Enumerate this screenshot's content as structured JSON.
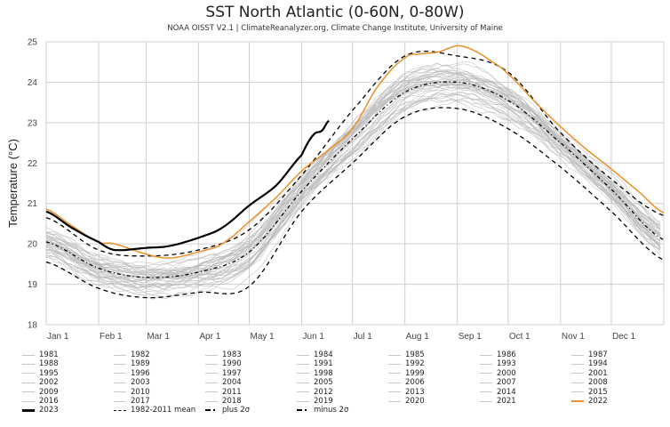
{
  "chart_data": {
    "type": "line",
    "title": "SST North Atlantic (0-60N, 0-80W)",
    "subtitle": "NOAA OISST V2.1 | ClimateReanalyzer.org, Climate Change Institute, University of Maine",
    "xlabel": "",
    "ylabel": "Temperature (°C)",
    "ylim": [
      18,
      25
    ],
    "yticks": [
      18,
      19,
      20,
      21,
      22,
      23,
      24,
      25
    ],
    "xlim_day_of_year": [
      0,
      365
    ],
    "xticks": [
      {
        "label": "Jan 1",
        "day": 0
      },
      {
        "label": "Feb 1",
        "day": 31
      },
      {
        "label": "Mar 1",
        "day": 59
      },
      {
        "label": "Apr 1",
        "day": 90
      },
      {
        "label": "May 1",
        "day": 120
      },
      {
        "label": "Jun 1",
        "day": 151
      },
      {
        "label": "Jul 1",
        "day": 181
      },
      {
        "label": "Aug 1",
        "day": 212
      },
      {
        "label": "Sep 1",
        "day": 243
      },
      {
        "label": "Oct 1",
        "day": 273
      },
      {
        "label": "Nov 1",
        "day": 304
      },
      {
        "label": "Dec 1",
        "day": 334
      }
    ],
    "grid": true,
    "legend_position": "bottom",
    "colors": {
      "year_gray": "#b8b8b8",
      "y2023": "#000000",
      "y2022": "#e8902a",
      "stats": "#000000",
      "grid": "#cfcfcf"
    },
    "series": [
      {
        "name": "1982-2011 mean",
        "style": "dashed",
        "x_day": [
          0,
          31,
          59,
          90,
          120,
          151,
          181,
          212,
          243,
          273,
          304,
          334,
          365
        ],
        "values": [
          20.05,
          19.4,
          19.17,
          19.3,
          19.8,
          21.3,
          22.6,
          23.75,
          24.0,
          23.55,
          22.5,
          21.35,
          20.1
        ]
      },
      {
        "name": "plus 2σ",
        "style": "dash-dot",
        "x_day": [
          0,
          31,
          59,
          90,
          120,
          151,
          181,
          212,
          243,
          273,
          304,
          334,
          365
        ],
        "values": [
          20.65,
          19.85,
          19.7,
          19.85,
          20.35,
          21.7,
          23.3,
          24.65,
          24.65,
          24.25,
          22.75,
          21.6,
          20.7
        ]
      },
      {
        "name": "minus 2σ",
        "style": "dash-dot",
        "x_day": [
          0,
          31,
          59,
          90,
          120,
          151,
          181,
          212,
          243,
          273,
          304,
          334,
          365
        ],
        "values": [
          19.55,
          18.9,
          18.67,
          18.8,
          18.95,
          20.8,
          22.0,
          23.15,
          23.35,
          22.85,
          21.9,
          20.8,
          19.6
        ]
      },
      {
        "name": "2022",
        "style": "solid",
        "x_day": [
          0,
          15,
          31,
          40,
          59,
          73,
          90,
          104,
          120,
          136,
          151,
          166,
          181,
          196,
          212,
          221,
          232,
          243,
          252,
          262,
          273,
          288,
          304,
          319,
          334,
          350,
          365
        ],
        "values": [
          20.86,
          20.45,
          20.05,
          20.0,
          19.75,
          19.65,
          19.8,
          20.0,
          20.55,
          21.15,
          21.8,
          22.3,
          22.85,
          23.9,
          24.6,
          24.7,
          24.75,
          24.9,
          24.8,
          24.55,
          24.2,
          23.55,
          22.9,
          22.35,
          21.85,
          21.3,
          20.77
        ]
      },
      {
        "name": "2023",
        "style": "solid-bold",
        "x_day": [
          0,
          15,
          31,
          40,
          59,
          73,
          90,
          104,
          120,
          136,
          151,
          158,
          163,
          167
        ],
        "values": [
          20.8,
          20.4,
          20.05,
          19.85,
          19.9,
          19.95,
          20.15,
          20.4,
          20.95,
          21.45,
          22.2,
          22.7,
          22.8,
          23.05
        ]
      }
    ],
    "gray_years": {
      "years": [
        1981,
        1982,
        1983,
        1984,
        1985,
        1986,
        1987,
        1988,
        1989,
        1990,
        1991,
        1992,
        1993,
        1994,
        1995,
        1996,
        1997,
        1998,
        1999,
        2000,
        2001,
        2002,
        2003,
        2004,
        2005,
        2006,
        2007,
        2008,
        2009,
        2010,
        2011,
        2012,
        2013,
        2014,
        2015,
        2016,
        2017,
        2018,
        2019,
        2020,
        2021
      ],
      "anomaly_vs_mean_c": [
        -0.45,
        -0.5,
        -0.3,
        -0.45,
        -0.55,
        -0.5,
        -0.2,
        -0.15,
        -0.35,
        -0.1,
        -0.25,
        -0.55,
        -0.4,
        -0.45,
        -0.1,
        -0.3,
        -0.1,
        0.15,
        0.0,
        -0.05,
        0.1,
        0.05,
        0.15,
        0.1,
        0.3,
        0.2,
        0.05,
        0.15,
        0.05,
        0.35,
        0.2,
        0.35,
        0.25,
        0.3,
        0.3,
        0.35,
        0.3,
        0.2,
        0.35,
        0.5,
        0.4
      ]
    },
    "legend": {
      "columns": 7,
      "entries": [
        {
          "label": "1981",
          "kind": "gray"
        },
        {
          "label": "1982",
          "kind": "gray"
        },
        {
          "label": "1983",
          "kind": "gray"
        },
        {
          "label": "1984",
          "kind": "gray"
        },
        {
          "label": "1985",
          "kind": "gray"
        },
        {
          "label": "1986",
          "kind": "gray"
        },
        {
          "label": "1987",
          "kind": "gray"
        },
        {
          "label": "1988",
          "kind": "gray"
        },
        {
          "label": "1989",
          "kind": "gray"
        },
        {
          "label": "1990",
          "kind": "gray"
        },
        {
          "label": "1991",
          "kind": "gray"
        },
        {
          "label": "1992",
          "kind": "gray"
        },
        {
          "label": "1993",
          "kind": "gray"
        },
        {
          "label": "1994",
          "kind": "gray"
        },
        {
          "label": "1995",
          "kind": "gray"
        },
        {
          "label": "1996",
          "kind": "gray"
        },
        {
          "label": "1997",
          "kind": "gray"
        },
        {
          "label": "1998",
          "kind": "gray"
        },
        {
          "label": "1999",
          "kind": "gray"
        },
        {
          "label": "2000",
          "kind": "gray"
        },
        {
          "label": "2001",
          "kind": "gray"
        },
        {
          "label": "2002",
          "kind": "gray"
        },
        {
          "label": "2003",
          "kind": "gray"
        },
        {
          "label": "2004",
          "kind": "gray"
        },
        {
          "label": "2005",
          "kind": "gray"
        },
        {
          "label": "2006",
          "kind": "gray"
        },
        {
          "label": "2007",
          "kind": "gray"
        },
        {
          "label": "2008",
          "kind": "gray"
        },
        {
          "label": "2009",
          "kind": "gray"
        },
        {
          "label": "2010",
          "kind": "gray"
        },
        {
          "label": "2011",
          "kind": "gray"
        },
        {
          "label": "2012",
          "kind": "gray"
        },
        {
          "label": "2013",
          "kind": "gray"
        },
        {
          "label": "2014",
          "kind": "gray"
        },
        {
          "label": "2015",
          "kind": "gray"
        },
        {
          "label": "2016",
          "kind": "gray"
        },
        {
          "label": "2017",
          "kind": "gray"
        },
        {
          "label": "2018",
          "kind": "gray"
        },
        {
          "label": "2019",
          "kind": "gray"
        },
        {
          "label": "2020",
          "kind": "gray"
        },
        {
          "label": "2021",
          "kind": "gray"
        },
        {
          "label": "2022",
          "kind": "orange"
        },
        {
          "label": "2023",
          "kind": "bold"
        },
        {
          "label": "1982-2011 mean",
          "kind": "dashed"
        },
        {
          "label": "plus 2σ",
          "kind": "dashdot"
        },
        {
          "label": "minus 2σ",
          "kind": "dashdot"
        }
      ]
    }
  }
}
